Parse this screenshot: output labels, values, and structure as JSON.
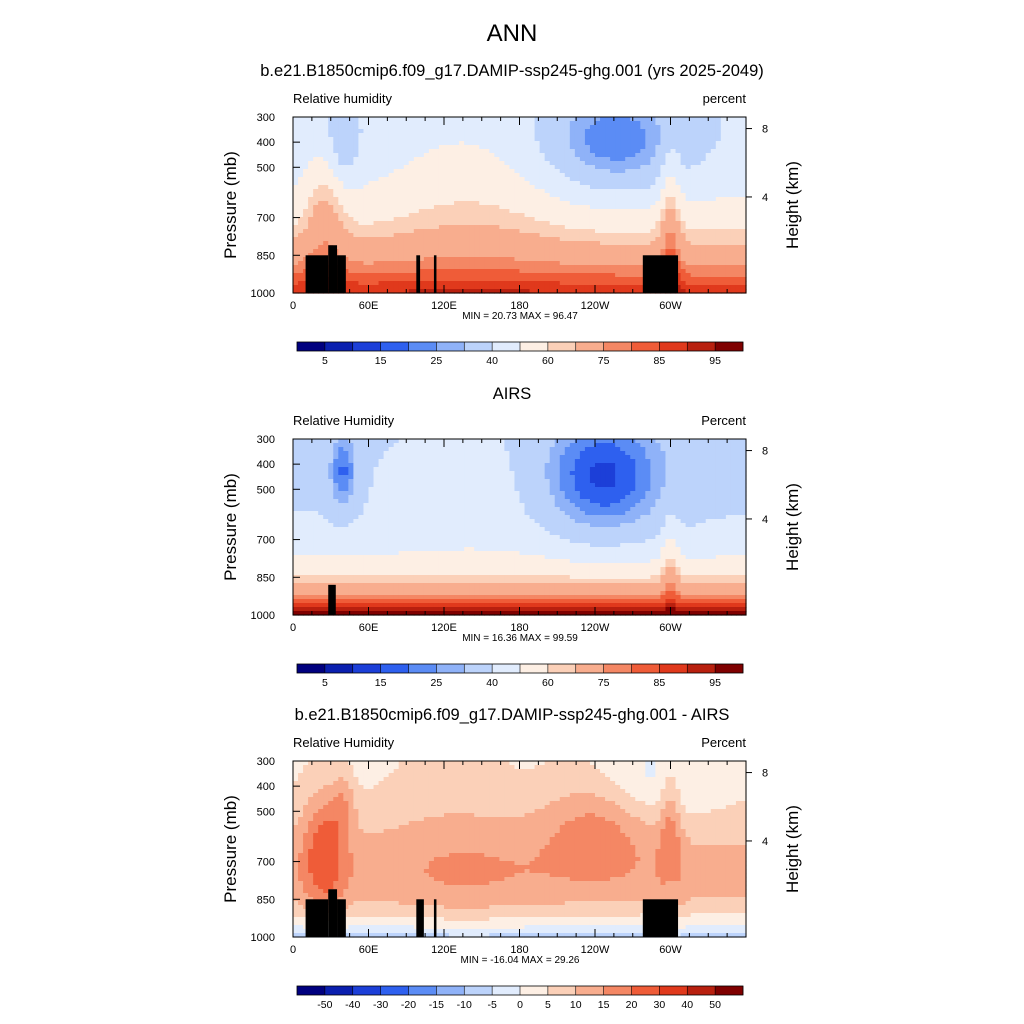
{
  "figure_title": "ANN",
  "chart_data": [
    {
      "type": "heatmap",
      "title": "b.e21.B1850cmip6.f09_g17.DAMIP-ssp245-ghg.001 (yrs 2025-2049)",
      "left_label": "Relative humidity",
      "right_label": "percent",
      "ylabel": "Pressure (mb)",
      "ylabel_right": "Height (km)",
      "ylim": [
        1000,
        300
      ],
      "y_ticks": [
        "300",
        "400",
        "500",
        "700",
        "850",
        "1000"
      ],
      "x_ticks": [
        "0",
        "60E",
        "120E",
        "180",
        "120W",
        "60W"
      ],
      "height_ticks": [
        "8",
        "4"
      ],
      "stats": "MIN =  20.73  MAX =  96.47",
      "colorbar_labels": [
        "5",
        "15",
        "25",
        "40",
        "60",
        "75",
        "85",
        "95"
      ],
      "min": 20.73,
      "max": 96.47,
      "variable": "rh"
    },
    {
      "type": "heatmap",
      "title": "AIRS",
      "left_label": "Relative Humidity",
      "right_label": "Percent",
      "ylabel": "Pressure (mb)",
      "ylabel_right": "Height (km)",
      "ylim": [
        1000,
        300
      ],
      "y_ticks": [
        "300",
        "400",
        "500",
        "700",
        "850",
        "1000"
      ],
      "x_ticks": [
        "0",
        "60E",
        "120E",
        "180",
        "120W",
        "60W"
      ],
      "height_ticks": [
        "8",
        "4"
      ],
      "stats": "MIN =  16.36  MAX =  99.59",
      "colorbar_labels": [
        "5",
        "15",
        "25",
        "40",
        "60",
        "75",
        "85",
        "95"
      ],
      "min": 16.36,
      "max": 99.59,
      "variable": "rh"
    },
    {
      "type": "heatmap",
      "title": "b.e21.B1850cmip6.f09_g17.DAMIP-ssp245-ghg.001 - AIRS",
      "left_label": "Relative Humidity",
      "right_label": "Percent",
      "ylabel": "Pressure (mb)",
      "ylabel_right": "Height (km)",
      "ylim": [
        1000,
        300
      ],
      "y_ticks": [
        "300",
        "400",
        "500",
        "700",
        "850",
        "1000"
      ],
      "x_ticks": [
        "0",
        "60E",
        "120E",
        "180",
        "120W",
        "60W"
      ],
      "height_ticks": [
        "8",
        "4"
      ],
      "stats": "MIN = -16.04  MAX =  29.26",
      "colorbar_labels": [
        "-50",
        "-40",
        "-30",
        "-20",
        "-15",
        "-10",
        "-5",
        "0",
        "5",
        "10",
        "15",
        "20",
        "30",
        "40",
        "50"
      ],
      "min": -16.04,
      "max": 29.26,
      "variable": "rh_diff"
    }
  ],
  "colormap": [
    "#00007f",
    "#0a1faf",
    "#1c3fd8",
    "#2e60ef",
    "#5b8cf5",
    "#8fb2f8",
    "#bcd3fb",
    "#e1ecfd",
    "#fdefe4",
    "#fbd0b8",
    "#f8ad8e",
    "#f48764",
    "#ef5c38",
    "#e0391c",
    "#b8200f",
    "#7f0000"
  ]
}
